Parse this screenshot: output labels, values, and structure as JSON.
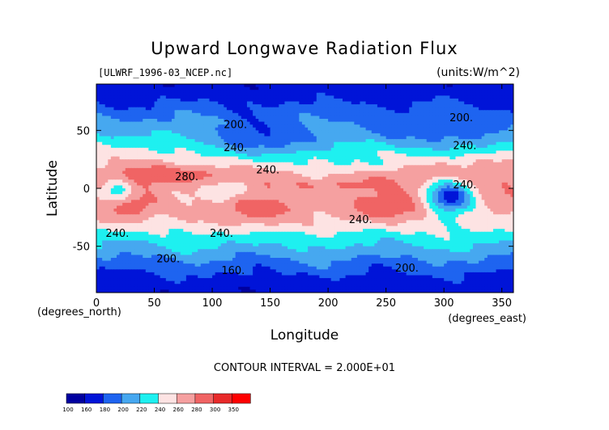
{
  "header": {
    "title": "Upward Longwave Radiation Flux",
    "file": "[ULWRF_1996-03_NCEP.nc]",
    "units": "(units:W/m^2)"
  },
  "axes": {
    "xlabel": "Longitude",
    "ylabel": "Latitude",
    "x_unit_note": "(degrees_east)",
    "y_unit_note": "(degrees_north)",
    "x_ticks": [
      "0",
      "50",
      "100",
      "150",
      "200",
      "250",
      "300",
      "350"
    ],
    "y_ticks": [
      "50",
      "0",
      "-50"
    ]
  },
  "contour_note": "CONTOUR INTERVAL = 2.000E+01",
  "colorbar": {
    "levels": [
      "100",
      "160",
      "180",
      "200",
      "220",
      "240",
      "260",
      "280",
      "300",
      "350"
    ],
    "colors": [
      "#0000a0",
      "#0014d8",
      "#1e64f0",
      "#46a8f0",
      "#1ef0f0",
      "#fde3e3",
      "#f5a0a0",
      "#f06464",
      "#e82a2a",
      "#ff0000"
    ]
  },
  "chart_data": {
    "type": "heatmap",
    "title": "Upward Longwave Radiation Flux",
    "subtitle": "[ULWRF_1996-03_NCEP.nc]",
    "xlabel": "Longitude",
    "ylabel": "Latitude",
    "xlim": [
      0,
      360
    ],
    "ylim": [
      -90,
      90
    ],
    "x_ticks": [
      0,
      50,
      100,
      150,
      200,
      250,
      300,
      350
    ],
    "y_ticks": [
      50,
      0,
      -50
    ],
    "contour_levels": [
      100,
      160,
      180,
      200,
      220,
      240,
      260,
      280,
      300,
      350
    ],
    "contour_interval": 20,
    "contour_labels": [
      {
        "text": "200",
        "x": 120,
        "y": 52
      },
      {
        "text": "240",
        "x": 120,
        "y": 32
      },
      {
        "text": "240",
        "x": 148,
        "y": 13
      },
      {
        "text": "280",
        "x": 78,
        "y": 7
      },
      {
        "text": "240",
        "x": 18,
        "y": -42
      },
      {
        "text": "240",
        "x": 108,
        "y": -42
      },
      {
        "text": "240",
        "x": 228,
        "y": -30
      },
      {
        "text": "200",
        "x": 62,
        "y": -64
      },
      {
        "text": "160",
        "x": 118,
        "y": -74
      },
      {
        "text": "200",
        "x": 268,
        "y": -72
      },
      {
        "text": "200",
        "x": 315,
        "y": 58
      },
      {
        "text": "240",
        "x": 318,
        "y": 34
      },
      {
        "text": "240",
        "x": 318,
        "y": 0
      }
    ]
  }
}
